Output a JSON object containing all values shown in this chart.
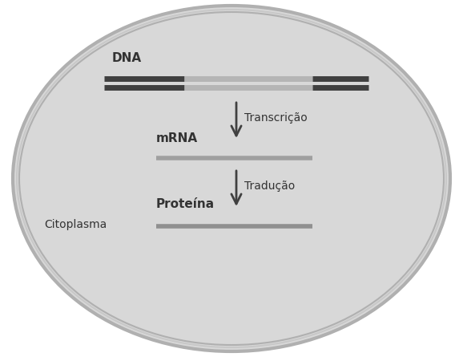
{
  "bg_color": "#ffffff",
  "ellipse_fill": "#d8d8d8",
  "ellipse_edge": "#b0b0b0",
  "dna_label": "DNA",
  "dna_dark_color": "#404040",
  "dna_light_color": "#b5b5b5",
  "arrow_color": "#404040",
  "transcricao_label": "Transcrição",
  "mrna_label": "mRNA",
  "mrna_line_color": "#a0a0a0",
  "traducao_label": "Tradução",
  "proteina_label": "Proteína",
  "proteina_line_color": "#909090",
  "citoplasma_label": "Citoplasma",
  "label_color": "#333333",
  "label_fontsize": 11,
  "small_label_fontsize": 10
}
